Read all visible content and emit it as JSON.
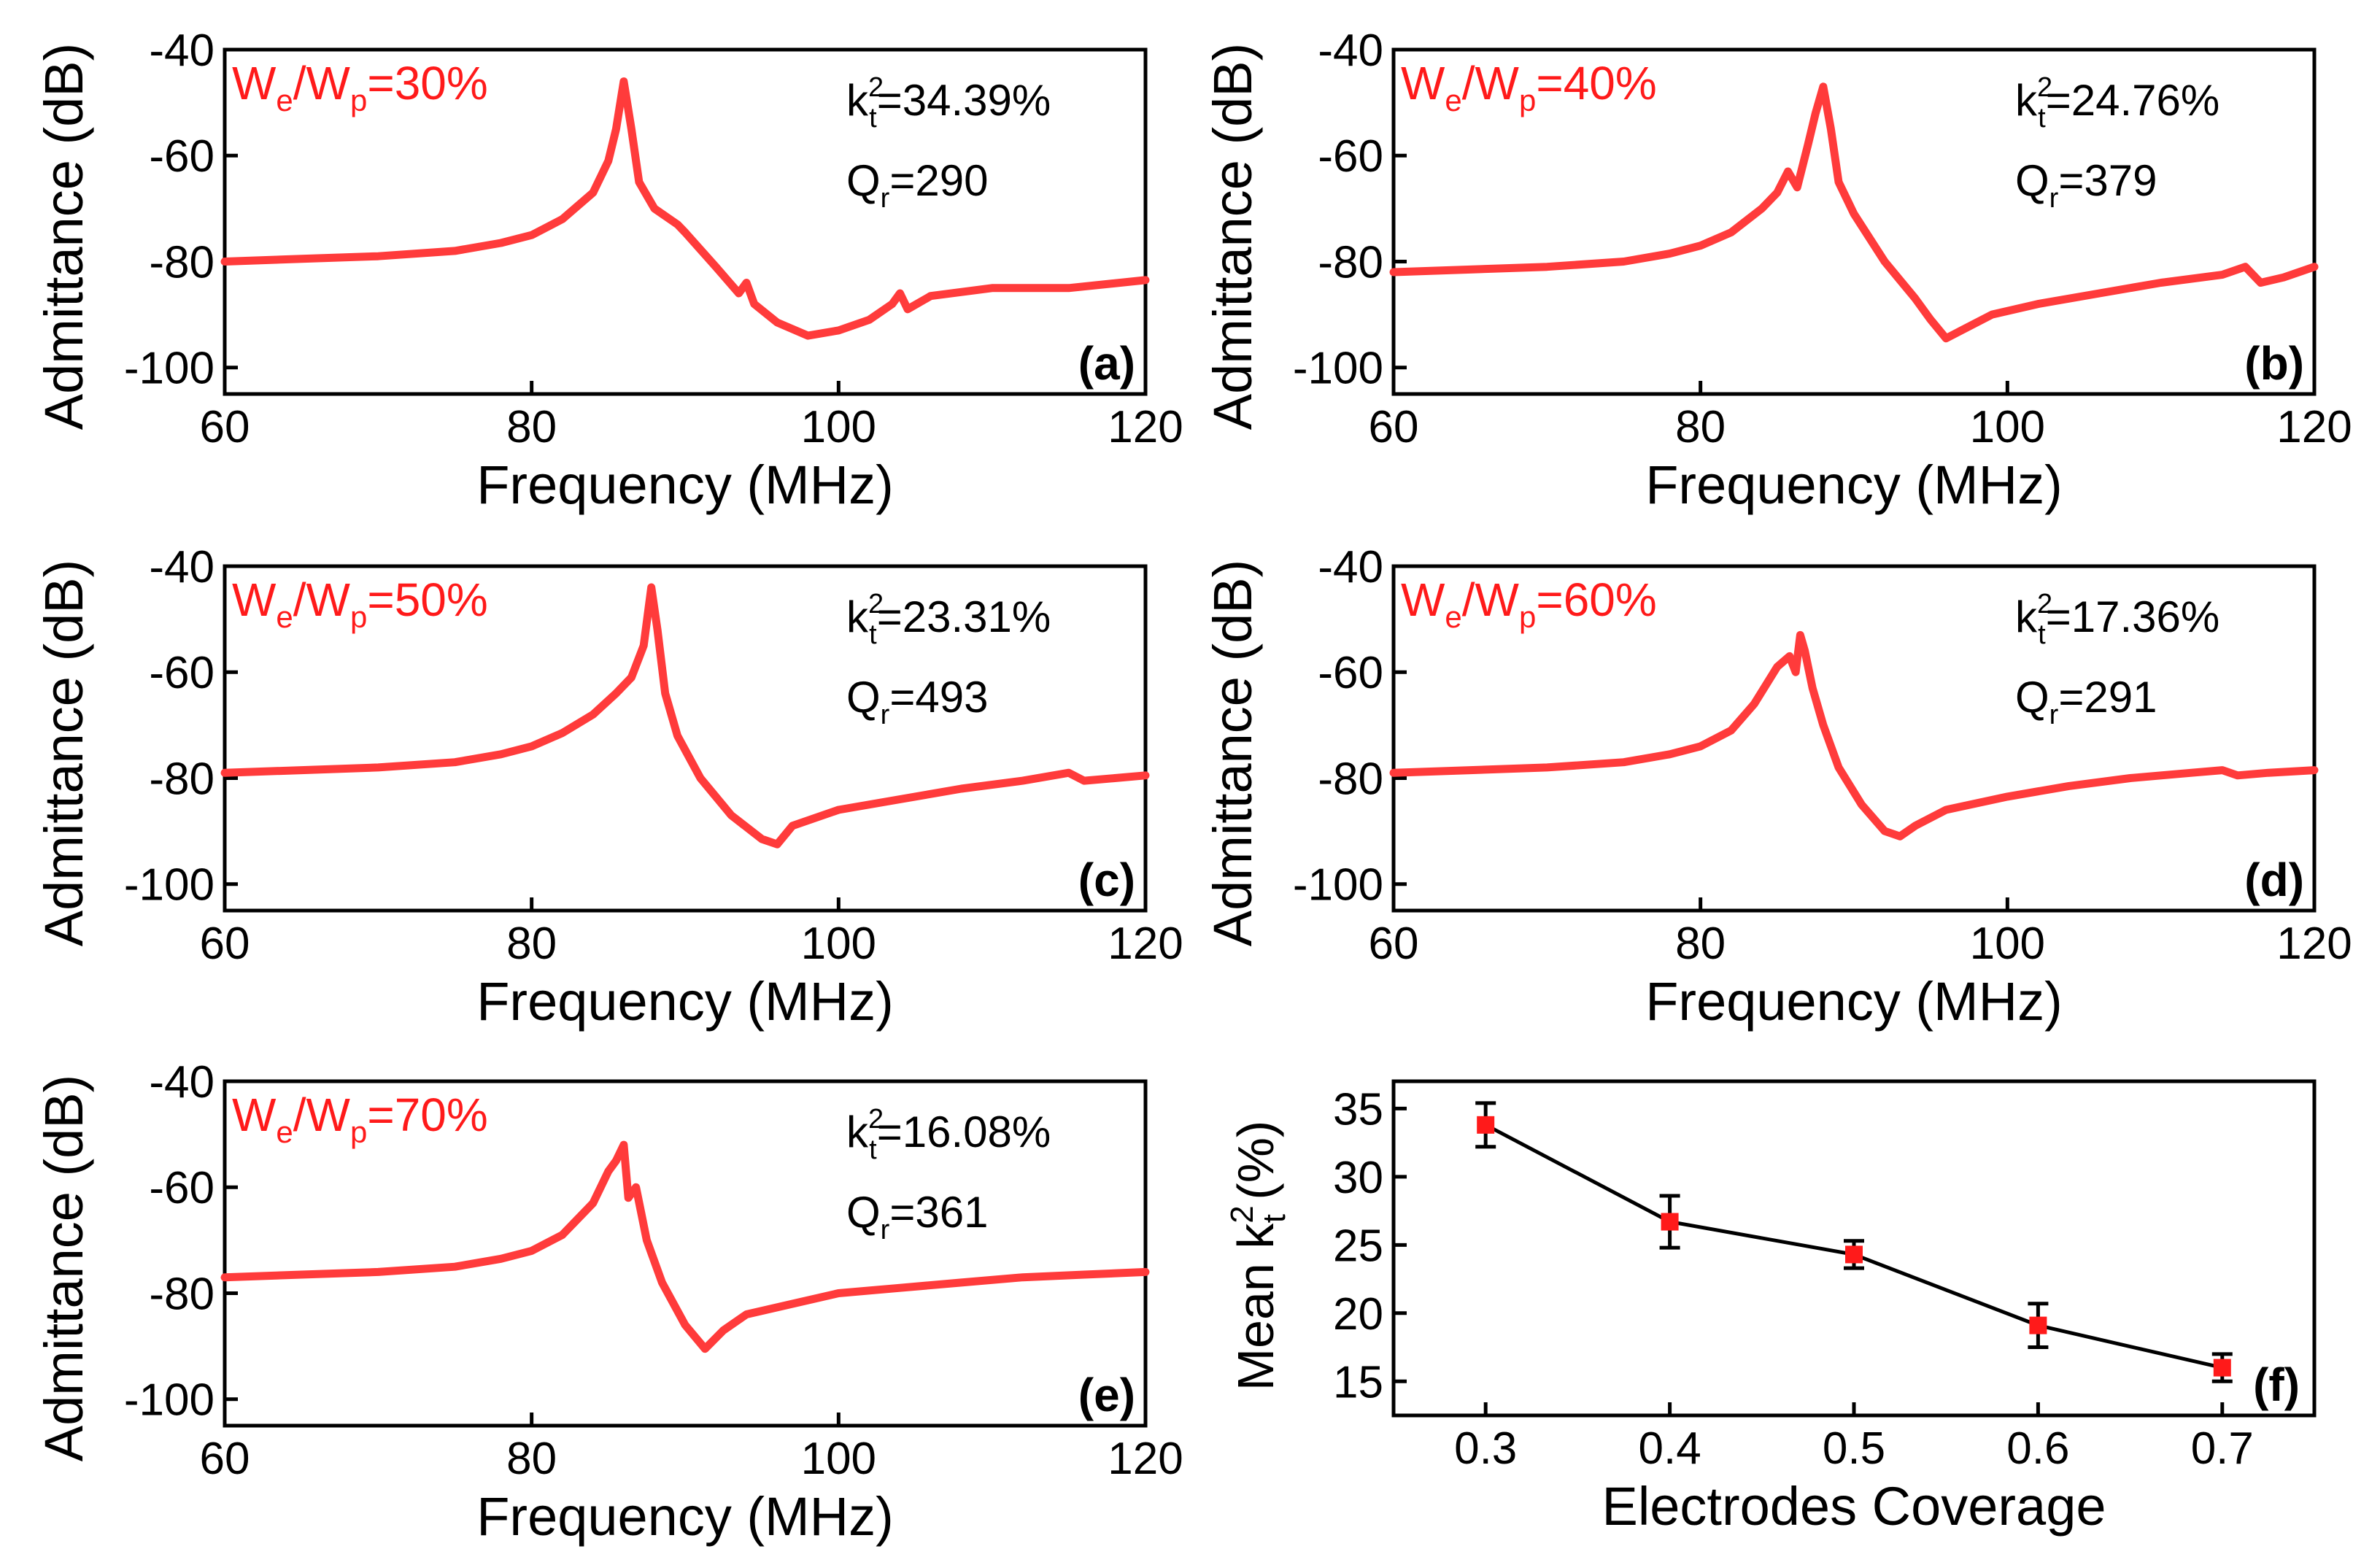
{
  "colors": {
    "curve": "#ff3b3b",
    "label_red": "#ff1a1a",
    "axis": "#000000",
    "marker": "#ff1a1a",
    "line_f": "#000000"
  },
  "chart_data": [
    {
      "id": "a",
      "type": "line",
      "panel_label": "(a)",
      "ratio": {
        "w": "W",
        "e": "e",
        "slash": "/W",
        "p": "p",
        "value": "=30%"
      },
      "k": {
        "prefix": "k",
        "sub": "t",
        "sup": "2",
        "value": "=34.39%"
      },
      "q": {
        "prefix": "Q",
        "sub": "r",
        "value": "=290"
      },
      "xlabel": "Frequency (MHz)",
      "ylabel": "Admittance (dB)",
      "xlim": [
        60,
        120
      ],
      "ylim": [
        -105,
        -40
      ],
      "xticks": [
        60,
        80,
        100,
        120
      ],
      "yticks": [
        -40,
        -60,
        -80,
        -100
      ],
      "x": [
        60,
        65,
        70,
        75,
        78,
        80,
        82,
        84,
        85,
        85.5,
        86,
        86.5,
        87,
        88,
        89,
        89.5,
        90,
        92,
        93.5,
        94,
        94.5,
        96,
        98,
        100,
        102,
        103.5,
        104,
        104.5,
        106,
        110,
        115,
        120
      ],
      "y": [
        -80,
        -79.5,
        -79,
        -78,
        -76.5,
        -75,
        -72,
        -67,
        -61,
        -55,
        -46,
        -55,
        -65,
        -70,
        -72,
        -73,
        -74.5,
        -81,
        -86,
        -84,
        -88,
        -91.5,
        -94,
        -93,
        -91,
        -88,
        -86,
        -89,
        -86.5,
        -85,
        -85,
        -83.5
      ]
    },
    {
      "id": "b",
      "type": "line",
      "panel_label": "(b)",
      "ratio": {
        "w": "W",
        "e": "e",
        "slash": "/W",
        "p": "p",
        "value": "=40%"
      },
      "k": {
        "prefix": "k",
        "sub": "t",
        "sup": "2",
        "value": "=24.76%"
      },
      "q": {
        "prefix": "Q",
        "sub": "r",
        "value": "=379"
      },
      "xlabel": "Frequency (MHz)",
      "ylabel": "Admittance (dB)",
      "xlim": [
        60,
        120
      ],
      "ylim": [
        -105,
        -40
      ],
      "xticks": [
        60,
        80,
        100,
        120
      ],
      "yticks": [
        -40,
        -60,
        -80,
        -100
      ],
      "x": [
        60,
        65,
        70,
        75,
        78,
        80,
        82,
        84,
        85,
        85.7,
        86.3,
        87,
        87.5,
        88,
        88.5,
        89,
        90,
        92,
        94,
        95,
        96,
        97,
        99,
        102,
        106,
        110,
        114,
        115.5,
        116.5,
        118,
        120
      ],
      "y": [
        -82,
        -81.5,
        -81,
        -80,
        -78.5,
        -77,
        -74.5,
        -70,
        -67,
        -63,
        -66,
        -58,
        -52,
        -47,
        -55,
        -65,
        -71,
        -80,
        -87,
        -91,
        -94.5,
        -93,
        -90,
        -88,
        -86,
        -84,
        -82.5,
        -81,
        -84,
        -83,
        -81
      ]
    },
    {
      "id": "c",
      "type": "line",
      "panel_label": "(c)",
      "ratio": {
        "w": "W",
        "e": "e",
        "slash": "/W",
        "p": "p",
        "value": "=50%"
      },
      "k": {
        "prefix": "k",
        "sub": "t",
        "sup": "2",
        "value": "=23.31%"
      },
      "q": {
        "prefix": "Q",
        "sub": "r",
        "value": "=493"
      },
      "xlabel": "Frequency (MHz)",
      "ylabel": "Admittance (dB)",
      "xlim": [
        60,
        120
      ],
      "ylim": [
        -105,
        -40
      ],
      "xticks": [
        60,
        80,
        100,
        120
      ],
      "yticks": [
        -40,
        -60,
        -80,
        -100
      ],
      "x": [
        60,
        65,
        70,
        75,
        78,
        80,
        82,
        84,
        85.5,
        86.5,
        87.3,
        87.8,
        88.2,
        88.7,
        89.5,
        91,
        93,
        95,
        96,
        97,
        100,
        104,
        108,
        112,
        115,
        116,
        118,
        120
      ],
      "y": [
        -79,
        -78.5,
        -78,
        -77,
        -75.5,
        -74,
        -71.5,
        -68,
        -64,
        -61,
        -55,
        -44,
        -52,
        -64,
        -72,
        -80,
        -87,
        -91.5,
        -92.5,
        -89,
        -86,
        -84,
        -82,
        -80.5,
        -79,
        -80.5,
        -80,
        -79.5
      ]
    },
    {
      "id": "d",
      "type": "line",
      "panel_label": "(d)",
      "ratio": {
        "w": "W",
        "e": "e",
        "slash": "/W",
        "p": "p",
        "value": "=60%"
      },
      "k": {
        "prefix": "k",
        "sub": "t",
        "sup": "2",
        "value": "=17.36%"
      },
      "q": {
        "prefix": "Q",
        "sub": "r",
        "value": "=291"
      },
      "xlabel": "Frequency (MHz)",
      "ylabel": "Admittance (dB)",
      "xlim": [
        60,
        120
      ],
      "ylim": [
        -105,
        -40
      ],
      "xticks": [
        60,
        80,
        100,
        120
      ],
      "yticks": [
        -40,
        -60,
        -80,
        -100
      ],
      "x": [
        60,
        65,
        70,
        75,
        78,
        80,
        82,
        83.5,
        85,
        85.8,
        86.2,
        86.5,
        86.8,
        87.3,
        88,
        89,
        90.5,
        92,
        93,
        94,
        96,
        100,
        104,
        108,
        112,
        114,
        115,
        117,
        120
      ],
      "y": [
        -79,
        -78.5,
        -78,
        -77,
        -75.5,
        -74,
        -71,
        -66,
        -59,
        -57,
        -60,
        -53,
        -56,
        -63,
        -70,
        -78,
        -85,
        -90,
        -91,
        -89,
        -86,
        -83.5,
        -81.5,
        -80,
        -79,
        -78.5,
        -79.5,
        -79,
        -78.5
      ]
    },
    {
      "id": "e",
      "type": "line",
      "panel_label": "(e)",
      "ratio": {
        "w": "W",
        "e": "e",
        "slash": "/W",
        "p": "p",
        "value": "=70%"
      },
      "k": {
        "prefix": "k",
        "sub": "t",
        "sup": "2",
        "value": "=16.08%"
      },
      "q": {
        "prefix": "Q",
        "sub": "r",
        "value": "=361"
      },
      "xlabel": "Frequency (MHz)",
      "ylabel": "Admittance (dB)",
      "xlim": [
        60,
        120
      ],
      "ylim": [
        -105,
        -40
      ],
      "xticks": [
        60,
        80,
        100,
        120
      ],
      "yticks": [
        -40,
        -60,
        -80,
        -100
      ],
      "x": [
        60,
        65,
        70,
        75,
        78,
        80,
        82,
        84,
        85,
        85.5,
        86,
        86.3,
        86.8,
        87.5,
        88.5,
        90,
        91.3,
        92.5,
        94,
        97,
        100,
        104,
        108,
        112,
        116,
        120
      ],
      "y": [
        -77,
        -76.5,
        -76,
        -75,
        -73.5,
        -72,
        -69,
        -63,
        -57,
        -55,
        -52,
        -62,
        -60,
        -70,
        -78,
        -86,
        -90.5,
        -87,
        -84,
        -82,
        -80,
        -79,
        -78,
        -77,
        -76.5,
        -76
      ]
    },
    {
      "id": "f",
      "type": "scatter",
      "panel_label": "(f)",
      "xlabel": "Electrodes Coverage",
      "ylabel": {
        "prefix": "Mean k",
        "sub": "t",
        "sup": "2",
        "suffix": " (%)"
      },
      "xlim": [
        0.25,
        0.75
      ],
      "ylim": [
        12.5,
        37
      ],
      "xticks": [
        0.3,
        0.4,
        0.5,
        0.6,
        0.7
      ],
      "yticks": [
        15,
        20,
        25,
        30,
        35
      ],
      "x": [
        0.3,
        0.4,
        0.5,
        0.6,
        0.7
      ],
      "y": [
        33.8,
        26.7,
        24.3,
        19.1,
        16.0
      ],
      "err": [
        1.6,
        1.9,
        1.0,
        1.6,
        1.0
      ]
    }
  ]
}
